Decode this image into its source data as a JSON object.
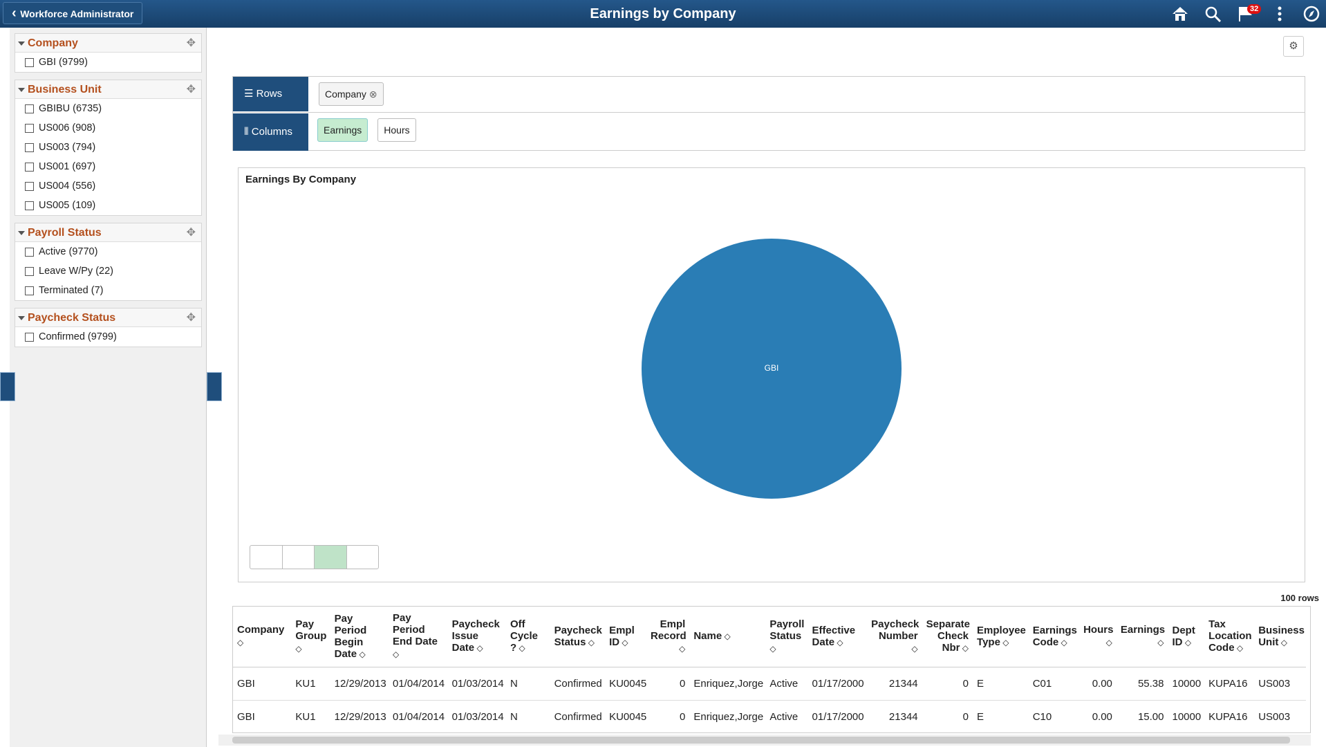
{
  "header": {
    "back": "Workforce Administrator",
    "title": "Earnings by Company",
    "badge": "32"
  },
  "facets": [
    {
      "title": "Company",
      "items": [
        "GBI (9799)"
      ]
    },
    {
      "title": "Business Unit",
      "items": [
        "GBIBU (6735)",
        "US006 (908)",
        "US003 (794)",
        "US001 (697)",
        "US004 (556)",
        "US005 (109)"
      ]
    },
    {
      "title": "Payroll Status",
      "items": [
        "Active (9770)",
        "Leave W/Py (22)",
        "Terminated (7)"
      ]
    },
    {
      "title": "Paycheck Status",
      "items": [
        "Confirmed (9799)"
      ]
    }
  ],
  "pivot": {
    "rows_label": "Rows",
    "rows_chips": [
      "Company"
    ],
    "columns_label": "Columns",
    "columns_chips": [
      "Earnings",
      "Hours"
    ]
  },
  "chart_data": {
    "type": "pie",
    "title": "Earnings By Company",
    "categories": [
      "GBI"
    ],
    "values": [
      100
    ],
    "colors": [
      "#2a7db5"
    ]
  },
  "row_count": "100 rows",
  "table": {
    "columns": [
      "Company",
      "Pay Group",
      "Pay Period Begin Date",
      "Pay Period End Date",
      "Paycheck Issue Date",
      "Off Cycle ?",
      "Paycheck Status",
      "Empl ID",
      "Empl Record",
      "Name",
      "Payroll Status",
      "Effective Date",
      "Paycheck Number",
      "Separate Check Nbr",
      "Employee Type",
      "Earnings Code",
      "Hours",
      "Earnings",
      "Dept ID",
      "Tax Location Code",
      "Business Unit"
    ],
    "rows": [
      [
        "GBI",
        "KU1",
        "12/29/2013",
        "01/04/2014",
        "01/03/2014",
        "N",
        "Confirmed",
        "KU0045",
        "0",
        "Enriquez,Jorge",
        "Active",
        "01/17/2000",
        "21344",
        "0",
        "E",
        "C01",
        "0.00",
        "55.38",
        "10000",
        "KUPA16",
        "US003"
      ],
      [
        "GBI",
        "KU1",
        "12/29/2013",
        "01/04/2014",
        "01/03/2014",
        "N",
        "Confirmed",
        "KU0045",
        "0",
        "Enriquez,Jorge",
        "Active",
        "01/17/2000",
        "21344",
        "0",
        "E",
        "C10",
        "0.00",
        "15.00",
        "10000",
        "KUPA16",
        "US003"
      ]
    ]
  }
}
